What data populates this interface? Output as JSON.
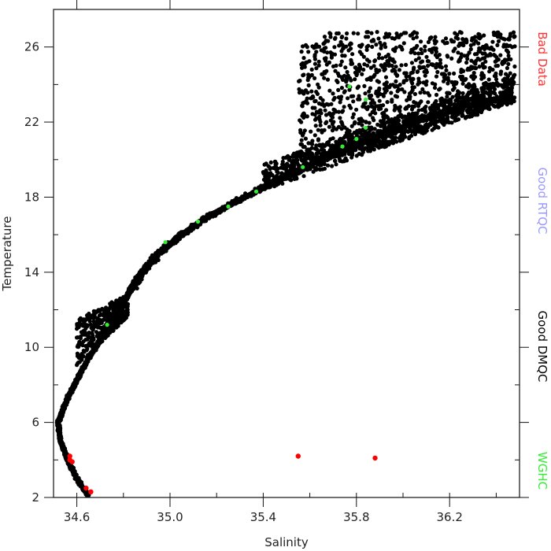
{
  "chart_data": {
    "type": "scatter",
    "xlabel": "Salinity",
    "ylabel": "Temperature",
    "xlim": [
      34.5,
      36.5
    ],
    "ylim": [
      2,
      28
    ],
    "x_ticks": [
      34.6,
      35.0,
      35.4,
      35.8,
      36.2
    ],
    "y_ticks": [
      2,
      6,
      10,
      14,
      18,
      22,
      26
    ],
    "legend": {
      "placement": "right-vertical",
      "entries": [
        {
          "label": "Bad Data",
          "color": "#ff3333"
        },
        {
          "label": "Good RTQC",
          "color": "#9999ff"
        },
        {
          "label": "Good DMQC",
          "color": "#000000"
        },
        {
          "label": "WGHC",
          "color": "#33ee33"
        }
      ]
    },
    "series": [
      {
        "name": "Good DMQC",
        "color": "#000000",
        "description_points": "main T-S curve",
        "curve": [
          {
            "x": 34.65,
            "y": 2.1
          },
          {
            "x": 34.6,
            "y": 3.0
          },
          {
            "x": 34.56,
            "y": 4.0
          },
          {
            "x": 34.53,
            "y": 5.0
          },
          {
            "x": 34.52,
            "y": 6.0
          },
          {
            "x": 34.55,
            "y": 7.0
          },
          {
            "x": 34.59,
            "y": 8.0
          },
          {
            "x": 34.63,
            "y": 9.0
          },
          {
            "x": 34.68,
            "y": 10.0
          },
          {
            "x": 34.73,
            "y": 11.0
          },
          {
            "x": 34.78,
            "y": 12.0
          },
          {
            "x": 34.83,
            "y": 13.0
          },
          {
            "x": 34.88,
            "y": 14.0
          },
          {
            "x": 34.95,
            "y": 15.0
          },
          {
            "x": 35.05,
            "y": 16.0
          },
          {
            "x": 35.17,
            "y": 17.0
          },
          {
            "x": 35.32,
            "y": 18.0
          },
          {
            "x": 35.48,
            "y": 19.0
          },
          {
            "x": 35.65,
            "y": 20.0
          },
          {
            "x": 35.85,
            "y": 21.0
          },
          {
            "x": 36.05,
            "y": 22.0
          },
          {
            "x": 36.25,
            "y": 22.8
          },
          {
            "x": 36.45,
            "y": 23.3
          }
        ],
        "clouds": [
          {
            "x_range": [
              34.6,
              34.82
            ],
            "y_range": [
              9.0,
              12.8
            ]
          },
          {
            "x_range": [
              35.55,
              36.48
            ],
            "y_range": [
              20.0,
              26.8
            ]
          }
        ]
      },
      {
        "name": "WGHC",
        "color": "#33ee33",
        "points": [
          {
            "x": 34.73,
            "y": 11.2
          },
          {
            "x": 34.98,
            "y": 15.6
          },
          {
            "x": 35.12,
            "y": 16.7
          },
          {
            "x": 35.25,
            "y": 17.5
          },
          {
            "x": 35.37,
            "y": 18.3
          },
          {
            "x": 35.57,
            "y": 19.6
          },
          {
            "x": 35.74,
            "y": 20.7
          },
          {
            "x": 35.8,
            "y": 21.1
          },
          {
            "x": 35.84,
            "y": 21.7
          },
          {
            "x": 35.84,
            "y": 23.2
          },
          {
            "x": 35.77,
            "y": 23.9
          }
        ]
      },
      {
        "name": "Bad Data",
        "color": "#ff0000",
        "points": [
          {
            "x": 34.57,
            "y": 4.2
          },
          {
            "x": 34.57,
            "y": 4.0
          },
          {
            "x": 34.58,
            "y": 3.9
          },
          {
            "x": 34.64,
            "y": 2.5
          },
          {
            "x": 34.66,
            "y": 2.3
          },
          {
            "x": 35.55,
            "y": 4.2
          },
          {
            "x": 35.88,
            "y": 4.1
          }
        ]
      }
    ]
  }
}
